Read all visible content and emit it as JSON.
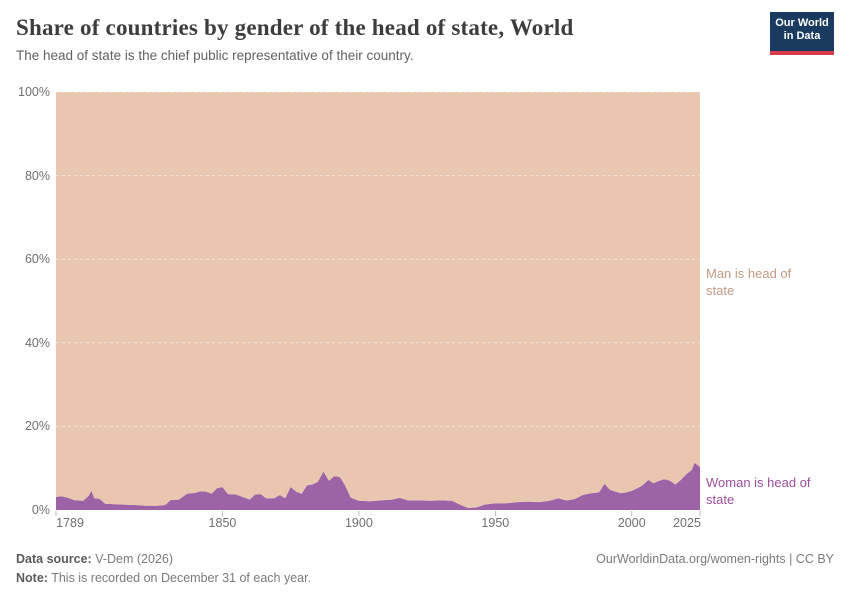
{
  "header": {
    "title": "Share of countries by gender of the head of state, World",
    "subtitle": "The head of state is the chief public representative of their country.",
    "logo": {
      "line1": "Our World",
      "line2": "in Data",
      "bg_color": "#1b3a5f",
      "bar_color": "#d93a4a"
    }
  },
  "chart_data": {
    "type": "area",
    "stacked": true,
    "unit": "%",
    "title": "Share of countries by gender of the head of state, World",
    "xlabel": "",
    "ylabel": "",
    "xlim": [
      1789,
      2025
    ],
    "ylim": [
      0,
      100
    ],
    "grid": "dashed horizontal at every 20%",
    "legend_position": "right edge, series labels colored by series",
    "x": [
      1789,
      1791,
      1793,
      1796,
      1799,
      1801,
      1802,
      1803,
      1805,
      1807,
      1810,
      1814,
      1818,
      1822,
      1826,
      1829,
      1831,
      1834,
      1837,
      1840,
      1842,
      1844,
      1846,
      1848,
      1850,
      1852,
      1855,
      1858,
      1860,
      1862,
      1864,
      1866,
      1869,
      1871,
      1873,
      1875,
      1877,
      1879,
      1881,
      1883,
      1885,
      1887,
      1889,
      1891,
      1893,
      1895,
      1897,
      1900,
      1904,
      1908,
      1912,
      1915,
      1918,
      1922,
      1926,
      1930,
      1934,
      1938,
      1940,
      1943,
      1946,
      1950,
      1954,
      1958,
      1962,
      1966,
      1970,
      1973,
      1976,
      1979,
      1982,
      1985,
      1988,
      1990,
      1992,
      1994,
      1996,
      1998,
      2000,
      2002,
      2004,
      2006,
      2008,
      2010,
      2012,
      2014,
      2016,
      2018,
      2020,
      2022,
      2023,
      2024,
      2025
    ],
    "series": [
      {
        "name": "Woman is head of state",
        "color": "#9e63a7",
        "label_color": "#9c4f9f",
        "values": [
          3.1,
          3.3,
          3.0,
          2.3,
          2.2,
          3.4,
          4.6,
          2.8,
          2.7,
          1.5,
          1.4,
          1.3,
          1.2,
          1.0,
          1.0,
          1.2,
          2.4,
          2.5,
          3.9,
          4.1,
          4.5,
          4.4,
          3.9,
          5.2,
          5.5,
          3.8,
          3.7,
          3.0,
          2.5,
          3.7,
          3.8,
          2.8,
          2.8,
          3.6,
          2.8,
          5.5,
          4.4,
          3.9,
          5.9,
          6.1,
          6.8,
          9.2,
          7.0,
          8.1,
          7.9,
          5.8,
          3.0,
          2.2,
          2.1,
          2.3,
          2.5,
          2.9,
          2.3,
          2.3,
          2.2,
          2.3,
          2.2,
          1.0,
          0.5,
          0.6,
          1.3,
          1.6,
          1.6,
          1.9,
          2.0,
          1.9,
          2.2,
          2.8,
          2.3,
          2.6,
          3.6,
          4.0,
          4.2,
          6.3,
          4.8,
          4.4,
          4.0,
          4.2,
          4.6,
          5.2,
          5.9,
          7.2,
          6.4,
          7.0,
          7.4,
          7.0,
          6.1,
          7.2,
          8.6,
          9.6,
          11.3,
          10.8,
          10.3
        ]
      },
      {
        "name": "Man is head of state",
        "color": "#e8c6af",
        "label_color": "#c29b85",
        "values": [
          96.9,
          96.7,
          97.0,
          97.7,
          97.8,
          96.6,
          95.4,
          97.2,
          97.3,
          98.5,
          98.6,
          98.7,
          98.8,
          99.0,
          99.0,
          98.8,
          97.6,
          97.5,
          96.1,
          95.9,
          95.5,
          95.6,
          96.1,
          94.8,
          94.5,
          96.2,
          96.3,
          97.0,
          97.5,
          96.3,
          96.2,
          97.2,
          97.2,
          96.4,
          97.2,
          94.5,
          95.6,
          96.1,
          94.1,
          93.9,
          93.2,
          90.8,
          93.0,
          91.9,
          92.1,
          94.2,
          97.0,
          97.8,
          97.9,
          97.7,
          97.5,
          97.1,
          97.7,
          97.7,
          97.8,
          97.7,
          97.8,
          99.0,
          99.5,
          99.4,
          98.7,
          98.4,
          98.4,
          98.1,
          98.0,
          98.1,
          97.8,
          97.2,
          97.7,
          97.4,
          96.4,
          96.0,
          95.8,
          93.7,
          95.2,
          95.6,
          96.0,
          95.8,
          95.4,
          94.8,
          94.1,
          92.8,
          93.6,
          93.0,
          92.6,
          93.0,
          93.9,
          92.8,
          91.4,
          90.4,
          88.7,
          89.2,
          89.7
        ]
      }
    ],
    "yticks": [
      {
        "pct": 0,
        "label": "0%"
      },
      {
        "pct": 20,
        "label": "20%"
      },
      {
        "pct": 40,
        "label": "40%"
      },
      {
        "pct": 60,
        "label": "60%"
      },
      {
        "pct": 80,
        "label": "80%"
      },
      {
        "pct": 100,
        "label": "100%"
      }
    ],
    "xticks": [
      {
        "year": 1789,
        "label": "1789"
      },
      {
        "year": 1850,
        "label": "1850"
      },
      {
        "year": 1900,
        "label": "1900"
      },
      {
        "year": 1950,
        "label": "1950"
      },
      {
        "year": 2000,
        "label": "2000"
      },
      {
        "year": 2025,
        "label": "2025"
      }
    ]
  },
  "annotations": {
    "man_label": "Man is head of state",
    "woman_label": "Woman is head of state"
  },
  "footer": {
    "source_label": "Data source:",
    "source_value": " V-Dem (2026)",
    "cc_link": "OurWorldinData.org/women-rights | CC BY",
    "note_label": "Note:",
    "note_value": " This is recorded on December 31 of each year."
  }
}
